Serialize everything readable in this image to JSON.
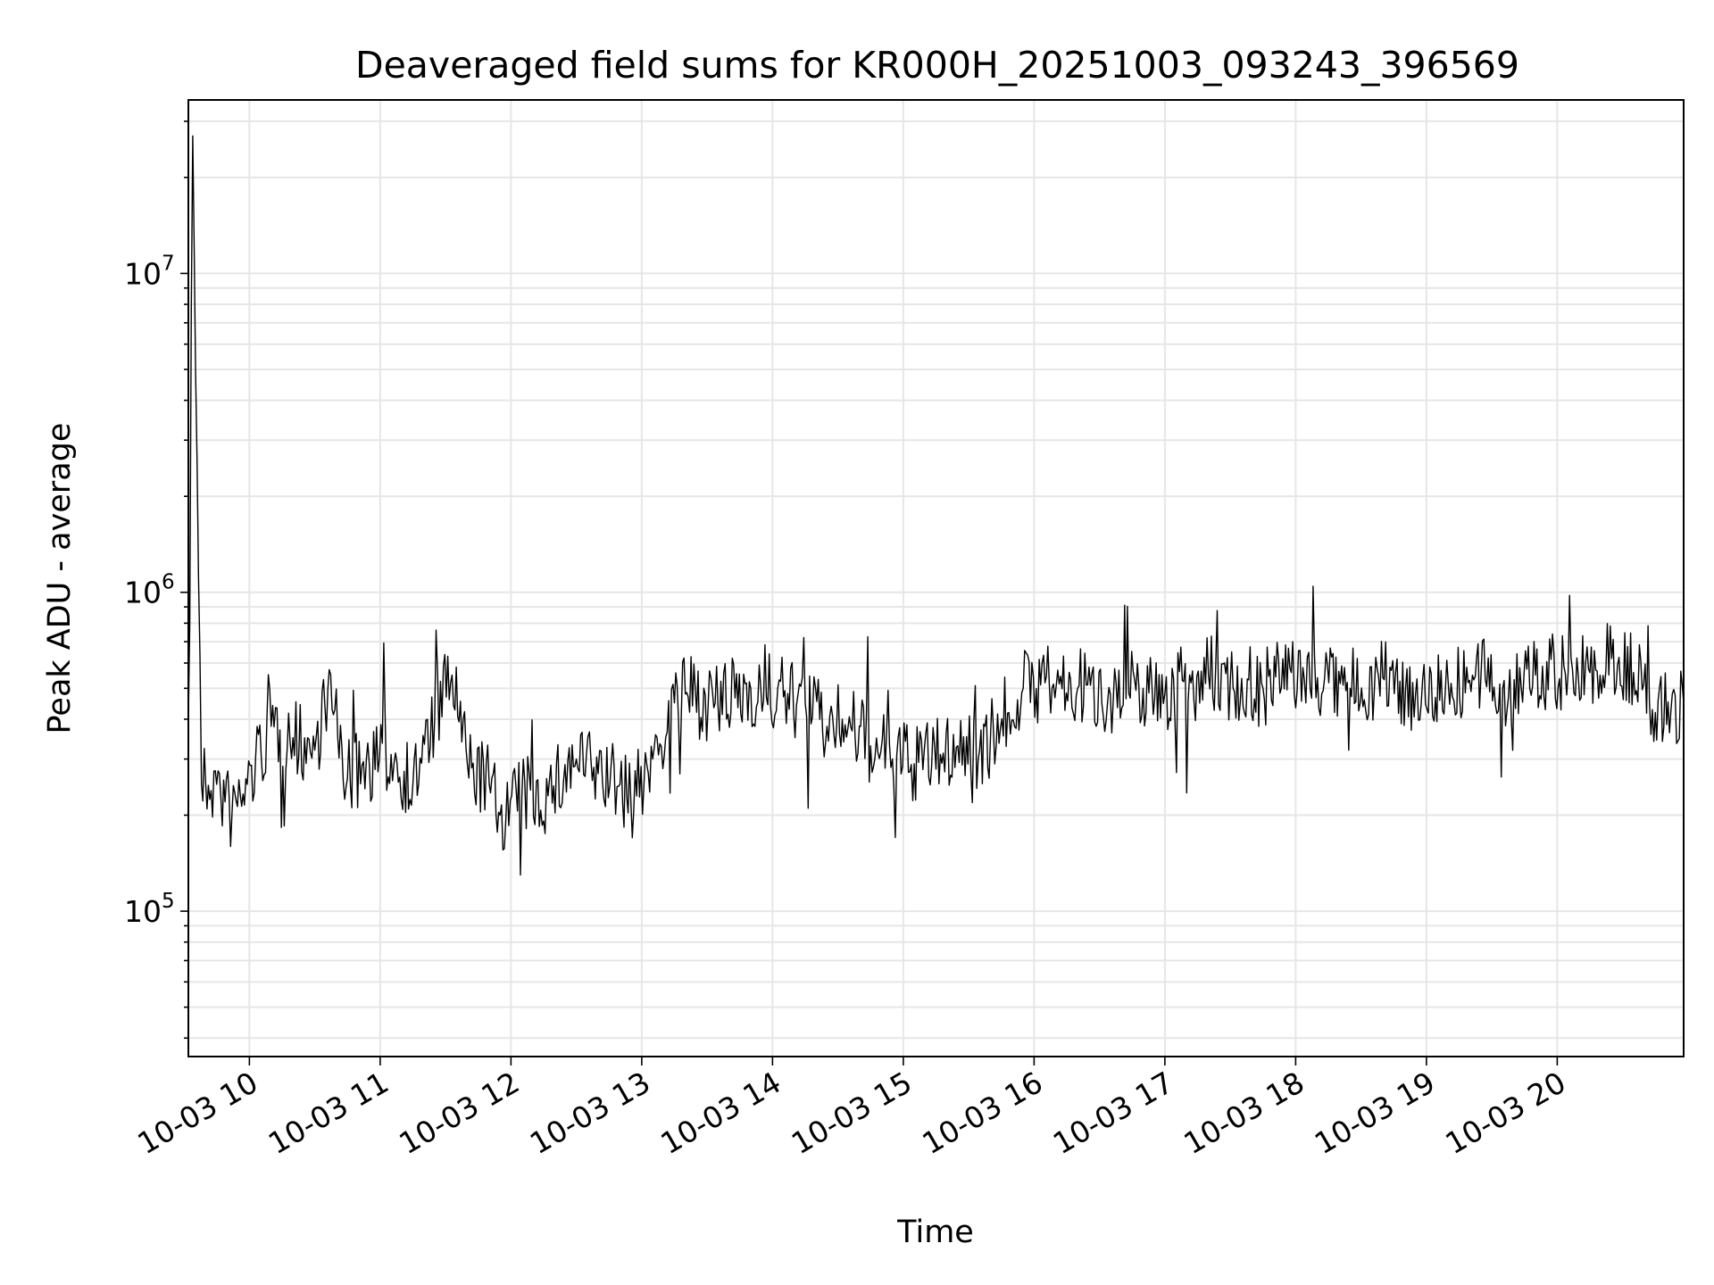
{
  "chart_data": {
    "type": "line",
    "title": "Deaveraged field sums for KR000H_20251003_093243_396569",
    "xlabel": "Time",
    "ylabel": "Peak ADU - average",
    "yscale": "log",
    "ylim": [
      35000,
      35000000
    ],
    "xlim": [
      "2025-10-03 09:32",
      "2025-10-03 20:58"
    ],
    "grid": true,
    "line_color": "#000000",
    "grid_color": "#e6e6e6",
    "y_ticks": [
      {
        "value": 100000,
        "base": "10",
        "exp": "5"
      },
      {
        "value": 1000000,
        "base": "10",
        "exp": "6"
      },
      {
        "value": 10000000,
        "base": "10",
        "exp": "7"
      }
    ],
    "x_ticks": [
      {
        "label": "10-03 10",
        "time": "2025-10-03 10:00"
      },
      {
        "label": "10-03 11",
        "time": "2025-10-03 11:00"
      },
      {
        "label": "10-03 12",
        "time": "2025-10-03 12:00"
      },
      {
        "label": "10-03 13",
        "time": "2025-10-03 13:00"
      },
      {
        "label": "10-03 14",
        "time": "2025-10-03 14:00"
      },
      {
        "label": "10-03 15",
        "time": "2025-10-03 15:00"
      },
      {
        "label": "10-03 16",
        "time": "2025-10-03 16:00"
      },
      {
        "label": "10-03 17",
        "time": "2025-10-03 17:00"
      },
      {
        "label": "10-03 18",
        "time": "2025-10-03 18:00"
      },
      {
        "label": "10-03 19",
        "time": "2025-10-03 19:00"
      },
      {
        "label": "10-03 20",
        "time": "2025-10-03 20:00"
      }
    ],
    "series": [
      {
        "x": [
          "2025-10-03 09:32",
          "2025-10-03 09:34",
          "2025-10-03 09:38",
          "2025-10-03 09:45",
          "2025-10-03 09:52",
          "2025-10-03 09:59",
          "2025-10-03 10:10",
          "2025-10-03 10:20",
          "2025-10-03 10:30",
          "2025-10-03 10:36",
          "2025-10-03 10:45",
          "2025-10-03 10:55",
          "2025-10-03 11:05",
          "2025-10-03 11:15",
          "2025-10-03 11:25",
          "2025-10-03 11:33",
          "2025-10-03 11:40",
          "2025-10-03 11:50",
          "2025-10-03 11:55",
          "2025-10-03 12:05",
          "2025-10-03 12:17",
          "2025-10-03 12:30",
          "2025-10-03 12:40",
          "2025-10-03 12:50",
          "2025-10-03 12:55",
          "2025-10-03 13:05",
          "2025-10-03 13:15",
          "2025-10-03 13:20",
          "2025-10-03 13:35",
          "2025-10-03 13:50",
          "2025-10-03 14:05",
          "2025-10-03 14:15",
          "2025-10-03 14:25",
          "2025-10-03 14:32",
          "2025-10-03 14:45",
          "2025-10-03 14:55",
          "2025-10-03 15:05",
          "2025-10-03 15:17",
          "2025-10-03 15:25",
          "2025-10-03 15:35",
          "2025-10-03 15:40",
          "2025-10-03 15:55",
          "2025-10-03 16:05",
          "2025-10-03 16:20",
          "2025-10-03 16:35",
          "2025-10-03 16:50",
          "2025-10-03 17:00",
          "2025-10-03 17:12",
          "2025-10-03 17:20",
          "2025-10-03 17:30",
          "2025-10-03 17:45",
          "2025-10-03 17:58",
          "2025-10-03 18:10",
          "2025-10-03 18:25",
          "2025-10-03 18:40",
          "2025-10-03 18:55",
          "2025-10-03 19:10",
          "2025-10-03 19:25",
          "2025-10-03 19:35",
          "2025-10-03 19:50",
          "2025-10-03 20:05",
          "2025-10-03 20:15",
          "2025-10-03 20:25",
          "2025-10-03 20:35",
          "2025-10-03 20:45",
          "2025-10-03 20:58"
        ],
        "y": [
          400000,
          27000000,
          250000,
          250000,
          200000,
          250000,
          380000,
          350000,
          320000,
          500000,
          260000,
          290000,
          310000,
          250000,
          400000,
          550000,
          290000,
          250000,
          200000,
          230000,
          230000,
          300000,
          270000,
          250000,
          220000,
          300000,
          450000,
          480000,
          440000,
          500000,
          470000,
          450000,
          380000,
          400000,
          330000,
          300000,
          290000,
          310000,
          330000,
          320000,
          350000,
          500000,
          520000,
          500000,
          480000,
          500000,
          480000,
          520000,
          550000,
          520000,
          500000,
          560000,
          540000,
          500000,
          540000,
          480000,
          520000,
          540000,
          500000,
          550000,
          560000,
          560000,
          620000,
          560000,
          420000,
          450000
        ]
      }
    ]
  }
}
